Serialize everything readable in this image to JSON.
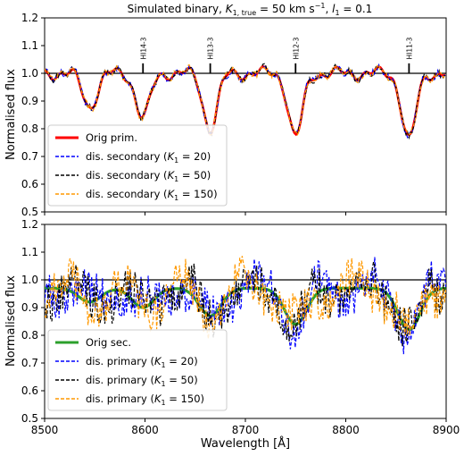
{
  "figure": {
    "title_main": "Simulated binary, ",
    "title_k": "K",
    "title_k_sub": "1, true",
    "title_k_value": " = 50 km s",
    "title_k_exp": "−1",
    "title_sep": ", ",
    "title_l": "l",
    "title_l_sub": "1",
    "title_l_value": " = 0.1",
    "x_axis_label": "Wavelength [Å]"
  },
  "chart_data": [
    {
      "type": "line",
      "panel": "top",
      "ylabel": "Normalised flux",
      "xlim": [
        8500,
        8900
      ],
      "ylim": [
        0.5,
        1.2
      ],
      "x_ticks": [
        "8500",
        "8600",
        "8700",
        "8800",
        "8900"
      ],
      "y_ticks": [
        "0.5",
        "0.6",
        "0.7",
        "0.8",
        "0.9",
        "1.0",
        "1.1",
        "1.2"
      ],
      "reference_line": 1.0,
      "line_labels": [
        {
          "label": "HI14-3",
          "x": 8598
        },
        {
          "label": "HI13-3",
          "x": 8665
        },
        {
          "label": "HI12-3",
          "x": 8750
        },
        {
          "label": "HI11-3",
          "x": 8863
        }
      ],
      "absorption_lines": [
        {
          "center": 8545,
          "depth": 0.12
        },
        {
          "center": 8598,
          "depth": 0.16
        },
        {
          "center": 8665,
          "depth": 0.2
        },
        {
          "center": 8750,
          "depth": 0.23
        },
        {
          "center": 8863,
          "depth": 0.24
        }
      ],
      "legend_position": "lower-left",
      "series": [
        {
          "name": "Orig prim.",
          "color": "#ff0000",
          "style": "solid"
        },
        {
          "name": "dis. secondary",
          "k1": "20",
          "color": "#0000ff",
          "style": "dashed"
        },
        {
          "name": "dis. secondary",
          "k1": "50",
          "color": "#000000",
          "style": "dashed"
        },
        {
          "name": "dis. secondary",
          "k1": "150",
          "color": "#ff9900",
          "style": "dashed"
        }
      ]
    },
    {
      "type": "line",
      "panel": "bottom",
      "ylabel": "Normalised flux",
      "xlim": [
        8500,
        8900
      ],
      "ylim": [
        0.5,
        1.2
      ],
      "x_ticks": [
        "8500",
        "8600",
        "8700",
        "8800",
        "8900"
      ],
      "y_ticks": [
        "0.5",
        "0.6",
        "0.7",
        "0.8",
        "0.9",
        "1.0",
        "1.1",
        "1.2"
      ],
      "reference_line": 1.0,
      "absorption_lines": [
        {
          "center": 8545,
          "depth": 0.05
        },
        {
          "center": 8598,
          "depth": 0.07
        },
        {
          "center": 8665,
          "depth": 0.1
        },
        {
          "center": 8750,
          "depth": 0.13
        },
        {
          "center": 8863,
          "depth": 0.15
        }
      ],
      "continuum": 0.97,
      "legend_position": "lower-left",
      "series": [
        {
          "name": "Orig sec.",
          "color": "#2ca02c",
          "style": "solid"
        },
        {
          "name": "dis. primary",
          "k1": "20",
          "color": "#0000ff",
          "style": "dashed"
        },
        {
          "name": "dis. primary",
          "k1": "50",
          "color": "#000000",
          "style": "dashed"
        },
        {
          "name": "dis. primary",
          "k1": "150",
          "color": "#ff9900",
          "style": "dashed"
        }
      ]
    }
  ]
}
